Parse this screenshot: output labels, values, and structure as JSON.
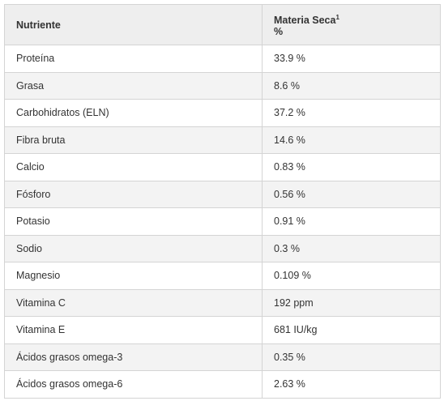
{
  "table": {
    "headers": {
      "nutrient": "Nutriente",
      "value_title": "Materia Seca",
      "value_sup": "1",
      "value_unit": "%"
    },
    "rows": [
      {
        "nutrient": "Proteína",
        "value": "33.9 %"
      },
      {
        "nutrient": "Grasa",
        "value": "8.6 %"
      },
      {
        "nutrient": "Carbohidratos (ELN)",
        "value": "37.2 %"
      },
      {
        "nutrient": "Fibra bruta",
        "value": "14.6 %"
      },
      {
        "nutrient": "Calcio",
        "value": "0.83 %"
      },
      {
        "nutrient": "Fósforo",
        "value": "0.56 %"
      },
      {
        "nutrient": "Potasio",
        "value": "0.91 %"
      },
      {
        "nutrient": "Sodio",
        "value": "0.3 %"
      },
      {
        "nutrient": "Magnesio",
        "value": "0.109 %"
      },
      {
        "nutrient": "Vitamina C",
        "value": "192 ppm"
      },
      {
        "nutrient": "Vitamina E",
        "value": "681 IU/kg"
      },
      {
        "nutrient": "Ácidos grasos omega-3",
        "value": "0.35 %"
      },
      {
        "nutrient": "Ácidos grasos omega-6",
        "value": "2.63 %"
      }
    ]
  }
}
